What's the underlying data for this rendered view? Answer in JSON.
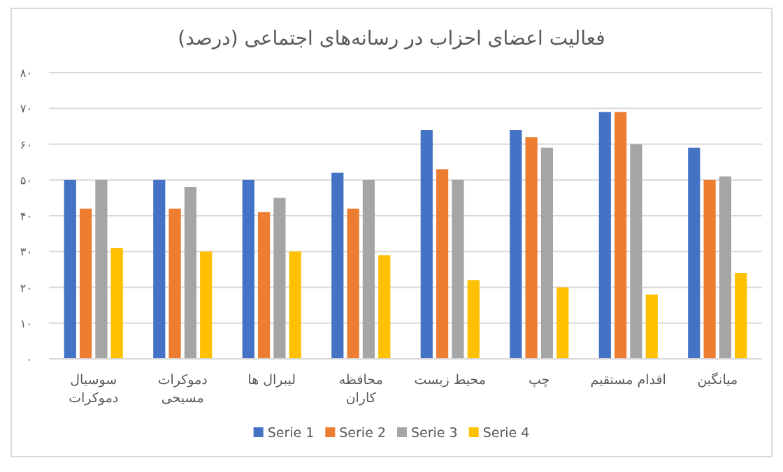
{
  "chart_data": {
    "type": "bar",
    "title": "فعالیت اعضای احزاب در رسانه‌های اجتماعی (درصد)",
    "categories": [
      "سوسیال دموکرات",
      "دموکرات مسیحی",
      "لیبرال ها",
      "محافظه کاران",
      "محیط زیست",
      "چپ",
      "اقدام مستقیم",
      "میانگین"
    ],
    "series": [
      {
        "name": "Serie 1",
        "color": "#4472c4",
        "values": [
          50,
          50,
          50,
          52,
          64,
          64,
          69,
          59
        ]
      },
      {
        "name": "Serie 2",
        "color": "#ed7d31",
        "values": [
          42,
          42,
          41,
          42,
          53,
          62,
          69,
          50
        ]
      },
      {
        "name": "Serie 3",
        "color": "#a5a5a5",
        "values": [
          50,
          48,
          45,
          50,
          50,
          59,
          60,
          51
        ]
      },
      {
        "name": "Serie 4",
        "color": "#ffc000",
        "values": [
          31,
          30,
          30,
          29,
          22,
          20,
          18,
          24
        ]
      }
    ],
    "ylim": [
      0,
      80
    ],
    "yticks": [
      {
        "value": 0,
        "label": "۰"
      },
      {
        "value": 10,
        "label": "۱۰"
      },
      {
        "value": 20,
        "label": "۲۰"
      },
      {
        "value": 30,
        "label": "۳۰"
      },
      {
        "value": 40,
        "label": "۴۰"
      },
      {
        "value": 50,
        "label": "۵۰"
      },
      {
        "value": 60,
        "label": "۶۰"
      },
      {
        "value": 70,
        "label": "۷۰"
      },
      {
        "value": 80,
        "label": "۸۰"
      }
    ],
    "grid": "y",
    "legend": "bottom"
  }
}
